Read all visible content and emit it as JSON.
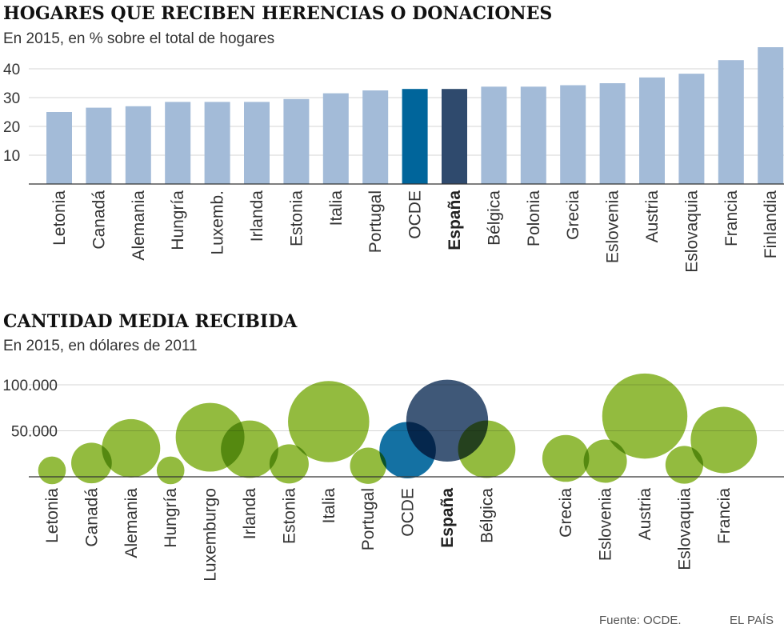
{
  "chart_data": [
    {
      "type": "bar",
      "title": "HOGARES QUE RECIBEN HERENCIAS O DONACIONES",
      "subtitle": "En 2015, en % sobre el total de hogares",
      "yticks": [
        10,
        20,
        30,
        40
      ],
      "ylim": [
        0,
        48
      ],
      "categories": [
        "Letonia",
        "Canadá",
        "Alemania",
        "Hungría",
        "Luxemb.",
        "Irlanda",
        "Estonia",
        "Italia",
        "Portugal",
        "OCDE",
        "España",
        "Bélgica",
        "Polonia",
        "Grecia",
        "Eslovenia",
        "Austria",
        "Eslovaquia",
        "Francia",
        "Finlandia"
      ],
      "values": [
        25,
        26.5,
        27,
        28.5,
        28.5,
        28.5,
        29.5,
        31.5,
        32.5,
        33,
        33,
        33.8,
        33.8,
        34.3,
        35,
        37,
        38.3,
        43,
        47.5
      ],
      "highlight": {
        "OCDE": "#00659b",
        "España": "#2f4a6d"
      },
      "bold_category": "España",
      "color": "#a3bbd8"
    },
    {
      "type": "bubble",
      "title": "CANTIDAD MEDIA RECIBIDA",
      "subtitle": "En 2015, en dólares de 2011",
      "yticks": [
        {
          "value": 50000,
          "label": "50.000"
        },
        {
          "value": 100000,
          "label": "100.000"
        }
      ],
      "categories": [
        "Letonia",
        "Canadá",
        "Alemania",
        "Hungría",
        "Luxemburgo",
        "Irlanda",
        "Estonia",
        "Italia",
        "Portugal",
        "OCDE",
        "España",
        "Bélgica",
        "Grecia",
        "Eslovenia",
        "Austria",
        "Eslovaquia",
        "Francia"
      ],
      "values": [
        7000,
        15000,
        31000,
        7000,
        43000,
        30000,
        14000,
        60000,
        12000,
        29000,
        61000,
        30000,
        20000,
        17000,
        66000,
        13000,
        40000
      ],
      "highlight": {
        "OCDE": "#00659b",
        "España": "#2f4a6d"
      },
      "bold_category": "España",
      "color": "#8ab52f",
      "overlap_color": "#4d6b1c"
    }
  ],
  "footer": {
    "source": "Fuente: OCDE.",
    "brand": "EL PAÍS"
  }
}
